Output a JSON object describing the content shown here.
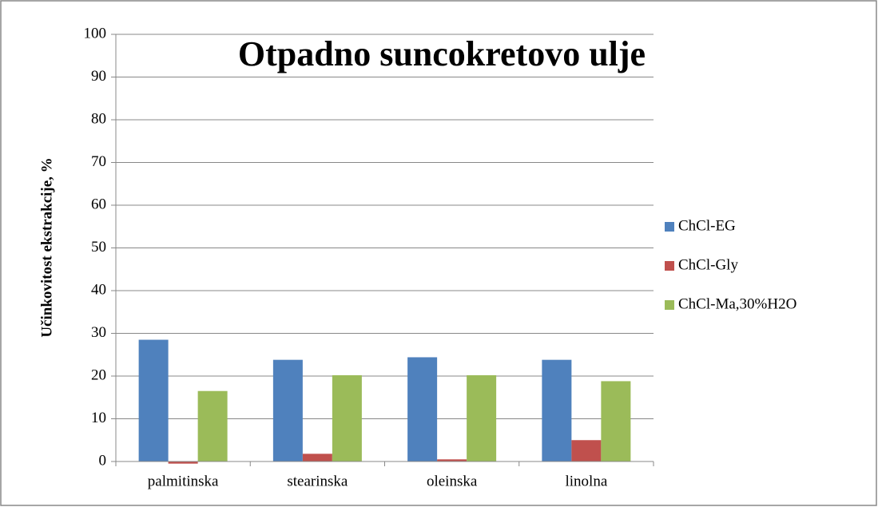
{
  "chart_data": {
    "type": "bar",
    "title": "Otpadno suncokretovo ulje",
    "y_label": "Učinkovitost ekstrakcije, %",
    "categories": [
      "palmitinska",
      "stearinska",
      "oleinska",
      "linolna"
    ],
    "series": [
      {
        "name": "ChCl-EG",
        "color": "#4f81bd",
        "values": [
          28.5,
          23.8,
          24.4,
          23.8
        ]
      },
      {
        "name": "ChCl-Gly",
        "color": "#c0504d",
        "values": [
          -0.5,
          1.8,
          0.5,
          5.0
        ]
      },
      {
        "name": "ChCl-Ma,30%H2O",
        "color": "#9bbb59",
        "values": [
          16.5,
          20.2,
          20.2,
          18.8
        ]
      }
    ],
    "ylim": [
      0,
      100
    ],
    "yticks": [
      0,
      10,
      20,
      30,
      40,
      50,
      60,
      70,
      80,
      90,
      100
    ],
    "grid": true,
    "legend": "right"
  }
}
